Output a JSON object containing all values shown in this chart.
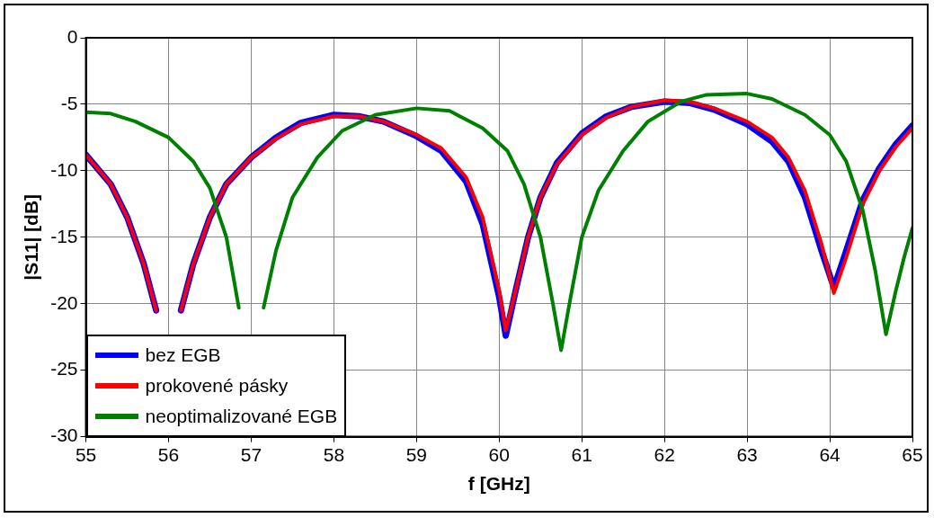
{
  "chart_data": {
    "type": "line",
    "xlabel": "f [GHz]",
    "ylabel": "|S11| [dB]",
    "xlim": [
      55,
      65
    ],
    "ylim": [
      -30,
      0
    ],
    "xticks": [
      55,
      56,
      57,
      58,
      59,
      60,
      61,
      62,
      63,
      64,
      65
    ],
    "yticks": [
      -30,
      -25,
      -20,
      -15,
      -10,
      -5,
      0
    ],
    "grid": true,
    "legend": "bottom left",
    "marker": "none",
    "line_style": "solid",
    "series": [
      {
        "name": "bez EGB",
        "color": "#0000ff",
        "x": [
          55,
          55.3,
          55.5,
          55.7,
          55.85,
          55.9,
          56.15,
          56.3,
          56.5,
          56.7,
          57,
          57.3,
          57.6,
          58,
          58.3,
          58.6,
          59,
          59.3,
          59.6,
          59.8,
          60,
          60.08,
          60.2,
          60.35,
          60.5,
          60.7,
          61,
          61.3,
          61.6,
          62,
          62.3,
          62.6,
          63,
          63.3,
          63.5,
          63.7,
          63.9,
          64.05,
          64.2,
          64.4,
          64.6,
          64.8,
          65
        ],
        "values": [
          -8.8,
          -11,
          -13.5,
          -17,
          -20.5,
          null,
          -20.5,
          -17,
          -13.5,
          -11,
          -9,
          -7.5,
          -6.4,
          -5.8,
          -5.9,
          -6.3,
          -7.4,
          -8.5,
          -10.8,
          -14,
          -19.5,
          -22.4,
          -19,
          -15,
          -12,
          -9.4,
          -7.2,
          -5.9,
          -5.2,
          -4.8,
          -4.9,
          -5.4,
          -6.5,
          -7.8,
          -9.3,
          -12,
          -16,
          -18.8,
          -16,
          -12.2,
          -9.8,
          -8,
          -6.6
        ]
      },
      {
        "name": "prokovené pásky",
        "color": "#ff0000",
        "x": [
          55,
          55.3,
          55.5,
          55.7,
          55.85,
          55.9,
          56.15,
          56.3,
          56.5,
          56.7,
          57,
          57.3,
          57.6,
          58,
          58.3,
          58.6,
          59,
          59.3,
          59.6,
          59.8,
          60,
          60.08,
          60.2,
          60.35,
          60.5,
          60.7,
          61,
          61.3,
          61.6,
          62,
          62.3,
          62.6,
          63,
          63.3,
          63.5,
          63.7,
          63.9,
          64.05,
          64.2,
          64.4,
          64.6,
          64.8,
          65
        ],
        "values": [
          -8.8,
          -11,
          -13.5,
          -17,
          -20.5,
          null,
          -20.5,
          -17,
          -13.5,
          -11,
          -9,
          -7.6,
          -6.5,
          -5.9,
          -5.9,
          -6.3,
          -7.3,
          -8.3,
          -10.5,
          -13.5,
          -19,
          -22,
          -19,
          -15,
          -12,
          -9.5,
          -7.3,
          -6,
          -5.2,
          -4.7,
          -4.8,
          -5.3,
          -6.3,
          -7.5,
          -9,
          -11.5,
          -15.5,
          -19.2,
          -16.5,
          -12.5,
          -10,
          -8.2,
          -6.8
        ]
      },
      {
        "name": "neoptimalizované EGB",
        "color": "#008000",
        "x": [
          55,
          55.3,
          55.6,
          56,
          56.3,
          56.5,
          56.7,
          56.85,
          56.9,
          57.15,
          57.3,
          57.5,
          57.8,
          58.1,
          58.5,
          59,
          59.4,
          59.8,
          60.1,
          60.3,
          60.5,
          60.65,
          60.75,
          60.85,
          61,
          61.2,
          61.5,
          61.8,
          62.2,
          62.5,
          63,
          63.3,
          63.7,
          64,
          64.2,
          64.4,
          64.55,
          64.68,
          64.8,
          64.9,
          65
        ],
        "values": [
          -5.6,
          -5.7,
          -6.3,
          -7.5,
          -9.3,
          -11.3,
          -15,
          -20.3,
          null,
          -20.3,
          -16,
          -12,
          -9,
          -7,
          -5.8,
          -5.3,
          -5.5,
          -6.8,
          -8.5,
          -11,
          -15,
          -20,
          -23.5,
          -20,
          -15,
          -11.5,
          -8.5,
          -6.3,
          -4.8,
          -4.3,
          -4.2,
          -4.6,
          -5.8,
          -7.3,
          -9.3,
          -13,
          -17.5,
          -22.3,
          -19,
          -16.5,
          -14.3
        ]
      }
    ]
  }
}
